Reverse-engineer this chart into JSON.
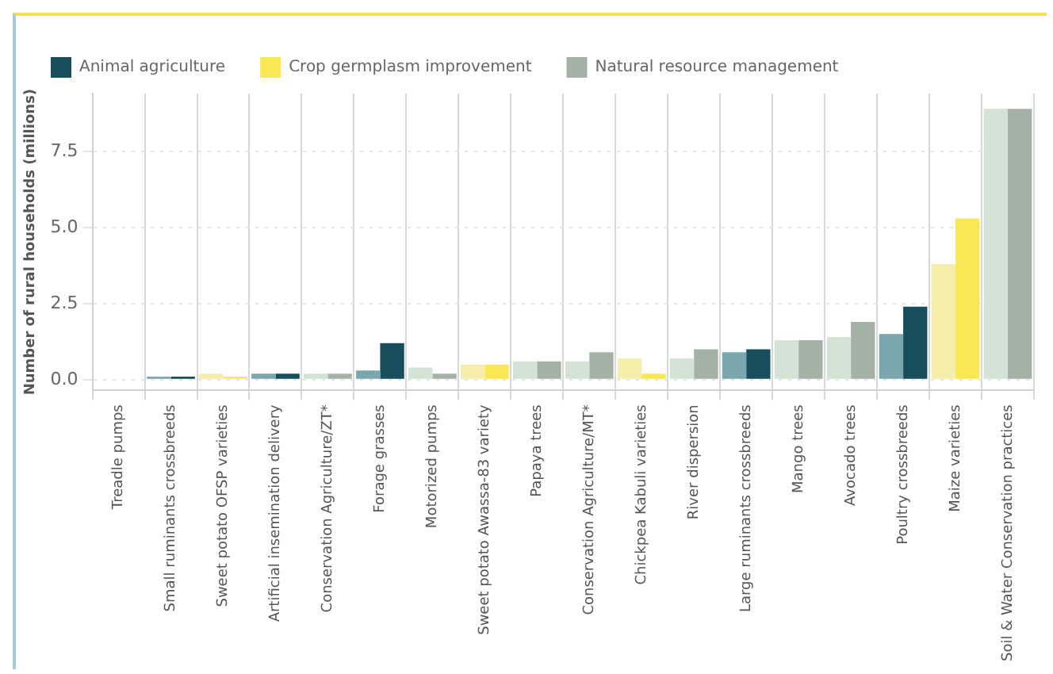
{
  "chart_data": {
    "type": "bar",
    "ylabel": "Number of rural households (millions)",
    "categories": [
      "Treadle pumps",
      "Small ruminants crossbreeds",
      "Sweet potato OFSP varieties",
      "Artificial insemination delivery",
      "Conservation Agriculture/ZT*",
      "Forage grasses",
      "Motorized pumps",
      "Sweet potato Awassa-83 variety",
      "Papaya trees",
      "Conservation Agriculture/MT*",
      "Chickpea Kabuli varieties",
      "River dispersion",
      "Large ruminants crossbreeds",
      "Mango trees",
      "Avocado trees",
      "Poultry crossbreeds",
      "Maize varieties",
      "Soil & Water Conservation practices"
    ],
    "series": [
      {
        "color": "#7aa6ae",
        "values": [
          null,
          0.1,
          null,
          0.2,
          null,
          0.3,
          null,
          null,
          null,
          null,
          null,
          null,
          0.9,
          null,
          null,
          1.5,
          null,
          null
        ]
      },
      {
        "color": "#f5eeaa",
        "values": [
          null,
          null,
          0.2,
          null,
          null,
          null,
          null,
          0.5,
          null,
          null,
          0.7,
          null,
          null,
          null,
          null,
          null,
          3.8,
          null
        ]
      },
      {
        "color": "#d3e3d5",
        "values": [
          0,
          null,
          null,
          null,
          0.2,
          null,
          0.4,
          null,
          0.6,
          0.6,
          null,
          0.7,
          null,
          1.3,
          1.4,
          null,
          null,
          8.9
        ]
      },
      {
        "name": "Animal agriculture",
        "color": "#164f5b",
        "values": [
          null,
          0.1,
          null,
          0.2,
          null,
          1.2,
          null,
          null,
          null,
          null,
          null,
          null,
          1.0,
          null,
          null,
          2.4,
          null,
          null
        ]
      },
      {
        "name": "Crop germplasm improvement",
        "color": "#f8e853",
        "values": [
          null,
          null,
          0.1,
          null,
          null,
          null,
          null,
          0.5,
          null,
          null,
          0.2,
          null,
          null,
          null,
          null,
          null,
          5.3,
          null
        ]
      },
      {
        "name": "Natural resource management",
        "color": "#a5b1a7",
        "values": [
          0,
          null,
          null,
          null,
          0.2,
          null,
          0.2,
          null,
          0.6,
          0.9,
          null,
          1.0,
          null,
          1.3,
          1.9,
          null,
          null,
          8.9
        ]
      }
    ],
    "ylim": [
      -0.35,
      9.4
    ],
    "yticks": [
      {
        "value": 0,
        "label": "0.0"
      },
      2.5,
      {
        "value": 5,
        "label": "5.0"
      },
      7.5
    ],
    "grid": true,
    "legend": "top"
  }
}
